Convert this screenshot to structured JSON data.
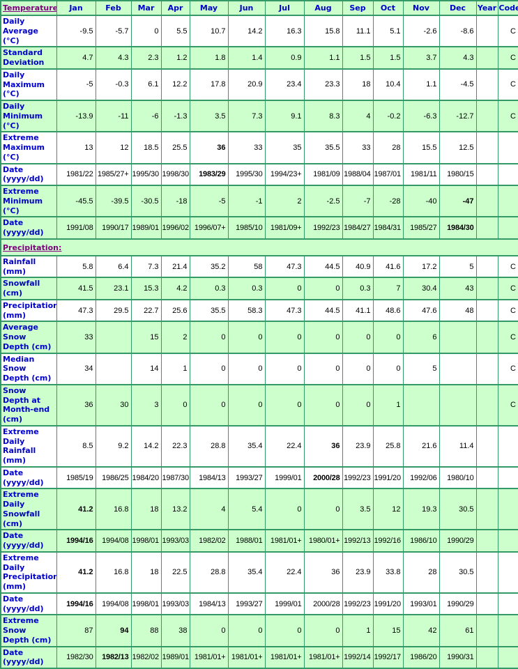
{
  "colors": {
    "border": "#339966",
    "row_green": "#ccffcc",
    "row_white": "#ffffff",
    "label_blue": "#0000cc",
    "section_purple": "#800080",
    "value_black": "#000000"
  },
  "table": {
    "header": {
      "label": "Temperature:",
      "columns": [
        "Jan",
        "Feb",
        "Mar",
        "Apr",
        "May",
        "Jun",
        "Jul",
        "Aug",
        "Sep",
        "Oct",
        "Nov",
        "Dec",
        "Year",
        "Code"
      ]
    },
    "rows": [
      {
        "label": "Daily Average (°C)",
        "bg": "white",
        "cells": [
          "-9.5",
          "-5.7",
          "0",
          "5.5",
          "10.7",
          "14.2",
          "16.3",
          "15.8",
          "11.1",
          "5.1",
          "-2.6",
          "-8.6",
          "",
          "C"
        ],
        "bold": []
      },
      {
        "label": "Standard Deviation",
        "bg": "green",
        "cells": [
          "4.7",
          "4.3",
          "2.3",
          "1.2",
          "1.8",
          "1.4",
          "0.9",
          "1.1",
          "1.5",
          "1.5",
          "3.7",
          "4.3",
          "",
          "C"
        ],
        "bold": []
      },
      {
        "label": "Daily Maximum (°C)",
        "bg": "white",
        "cells": [
          "-5",
          "-0.3",
          "6.1",
          "12.2",
          "17.8",
          "20.9",
          "23.4",
          "23.3",
          "18",
          "10.4",
          "1.1",
          "-4.5",
          "",
          "C"
        ],
        "bold": []
      },
      {
        "label": "Daily Minimum (°C)",
        "bg": "green",
        "cells": [
          "-13.9",
          "-11",
          "-6",
          "-1.3",
          "3.5",
          "7.3",
          "9.1",
          "8.3",
          "4",
          "-0.2",
          "-6.3",
          "-12.7",
          "",
          "C"
        ],
        "bold": []
      },
      {
        "label": "Extreme Maximum (°C)",
        "bg": "white",
        "cells": [
          "13",
          "12",
          "18.5",
          "25.5",
          "36",
          "33",
          "35",
          "35.5",
          "33",
          "28",
          "15.5",
          "12.5",
          "",
          ""
        ],
        "bold": [
          4
        ]
      },
      {
        "label": "Date (yyyy/dd)",
        "bg": "white",
        "date": true,
        "cells": [
          "1981/22",
          "1985/27+",
          "1995/30",
          "1998/30",
          "1983/29",
          "1995/30",
          "1994/23+",
          "1981/09",
          "1988/04",
          "1987/01",
          "1981/11",
          "1980/15",
          "",
          ""
        ],
        "bold": [
          4
        ]
      },
      {
        "label": "Extreme Minimum (°C)",
        "bg": "green",
        "cells": [
          "-45.5",
          "-39.5",
          "-30.5",
          "-18",
          "-5",
          "-1",
          "2",
          "-2.5",
          "-7",
          "-28",
          "-40",
          "-47",
          "",
          ""
        ],
        "bold": [
          11
        ]
      },
      {
        "label": "Date (yyyy/dd)",
        "bg": "green",
        "date": true,
        "cells": [
          "1991/08",
          "1990/17",
          "1989/01",
          "1996/02",
          "1996/07+",
          "1985/10",
          "1981/09+",
          "1992/23",
          "1984/27",
          "1984/31",
          "1985/27",
          "1984/30",
          "",
          ""
        ],
        "bold": [
          11
        ]
      },
      {
        "type": "section",
        "label": "Precipitation:",
        "name": "precipitation-section-link",
        "bg": "green"
      },
      {
        "label": "Rainfall (mm)",
        "bg": "white",
        "cells": [
          "5.8",
          "6.4",
          "7.3",
          "21.4",
          "35.2",
          "58",
          "47.3",
          "44.5",
          "40.9",
          "41.6",
          "17.2",
          "5",
          "",
          "C"
        ],
        "bold": []
      },
      {
        "label": "Snowfall (cm)",
        "bg": "green",
        "cells": [
          "41.5",
          "23.1",
          "15.3",
          "4.2",
          "0.3",
          "0.3",
          "0",
          "0",
          "0.3",
          "7",
          "30.4",
          "43",
          "",
          "C"
        ],
        "bold": []
      },
      {
        "label": "Precipitation (mm)",
        "bg": "white",
        "cells": [
          "47.3",
          "29.5",
          "22.7",
          "25.6",
          "35.5",
          "58.3",
          "47.3",
          "44.5",
          "41.1",
          "48.6",
          "47.6",
          "48",
          "",
          "C"
        ],
        "bold": []
      },
      {
        "label": "Average Snow Depth (cm)",
        "bg": "green",
        "cells": [
          "33",
          "",
          "15",
          "2",
          "0",
          "0",
          "0",
          "0",
          "0",
          "0",
          "6",
          "",
          "",
          "C"
        ],
        "bold": []
      },
      {
        "label": "Median Snow Depth (cm)",
        "bg": "white",
        "cells": [
          "34",
          "",
          "14",
          "1",
          "0",
          "0",
          "0",
          "0",
          "0",
          "0",
          "5",
          "",
          "",
          "C"
        ],
        "bold": []
      },
      {
        "label": "Snow Depth at Month-end (cm)",
        "bg": "green",
        "cells": [
          "36",
          "30",
          "3",
          "0",
          "0",
          "0",
          "0",
          "0",
          "0",
          "1",
          "",
          "",
          "",
          "C"
        ],
        "bold": []
      },
      {
        "label": "Extreme Daily Rainfall (mm)",
        "bg": "white",
        "cells": [
          "8.5",
          "9.2",
          "14.2",
          "22.3",
          "28.8",
          "35.4",
          "22.4",
          "36",
          "23.9",
          "25.8",
          "21.6",
          "11.4",
          "",
          ""
        ],
        "bold": [
          7
        ]
      },
      {
        "label": "Date (yyyy/dd)",
        "bg": "white",
        "date": true,
        "cells": [
          "1985/19",
          "1986/25",
          "1984/20",
          "1987/30",
          "1984/13",
          "1993/27",
          "1999/01",
          "2000/28",
          "1992/23",
          "1991/20",
          "1992/06",
          "1980/10",
          "",
          ""
        ],
        "bold": [
          7
        ]
      },
      {
        "label": "Extreme Daily Snowfall (cm)",
        "bg": "green",
        "cells": [
          "41.2",
          "16.8",
          "18",
          "13.2",
          "4",
          "5.4",
          "0",
          "0",
          "3.5",
          "12",
          "19.3",
          "30.5",
          "",
          ""
        ],
        "bold": [
          0
        ]
      },
      {
        "label": "Date (yyyy/dd)",
        "bg": "green",
        "date": true,
        "cells": [
          "1994/16",
          "1994/08",
          "1998/01",
          "1993/03",
          "1982/02",
          "1988/01",
          "1981/01+",
          "1980/01+",
          "1992/13",
          "1992/16",
          "1986/10",
          "1990/29",
          "",
          ""
        ],
        "bold": [
          0
        ]
      },
      {
        "label": "Extreme Daily Precipitation (mm)",
        "bg": "white",
        "cells": [
          "41.2",
          "16.8",
          "18",
          "22.5",
          "28.8",
          "35.4",
          "22.4",
          "36",
          "23.9",
          "33.8",
          "28",
          "30.5",
          "",
          ""
        ],
        "bold": [
          0
        ]
      },
      {
        "label": "Date (yyyy/dd)",
        "bg": "white",
        "date": true,
        "cells": [
          "1994/16",
          "1994/08",
          "1998/01",
          "1993/03",
          "1984/13",
          "1993/27",
          "1999/01",
          "2000/28",
          "1992/23",
          "1991/20",
          "1993/01",
          "1990/29",
          "",
          ""
        ],
        "bold": [
          0
        ]
      },
      {
        "label": "Extreme Snow Depth (cm)",
        "bg": "green",
        "cells": [
          "87",
          "94",
          "88",
          "38",
          "0",
          "0",
          "0",
          "0",
          "1",
          "15",
          "42",
          "61",
          "",
          ""
        ],
        "bold": [
          1
        ]
      },
      {
        "label": "Date (yyyy/dd)",
        "bg": "green",
        "date": true,
        "cells": [
          "1982/30",
          "1982/13",
          "1982/02",
          "1989/01",
          "1981/01+",
          "1981/01+",
          "1981/01+",
          "1981/01+",
          "1992/14",
          "1992/17",
          "1986/20",
          "1990/31",
          "",
          ""
        ],
        "bold": [
          1
        ]
      }
    ]
  }
}
